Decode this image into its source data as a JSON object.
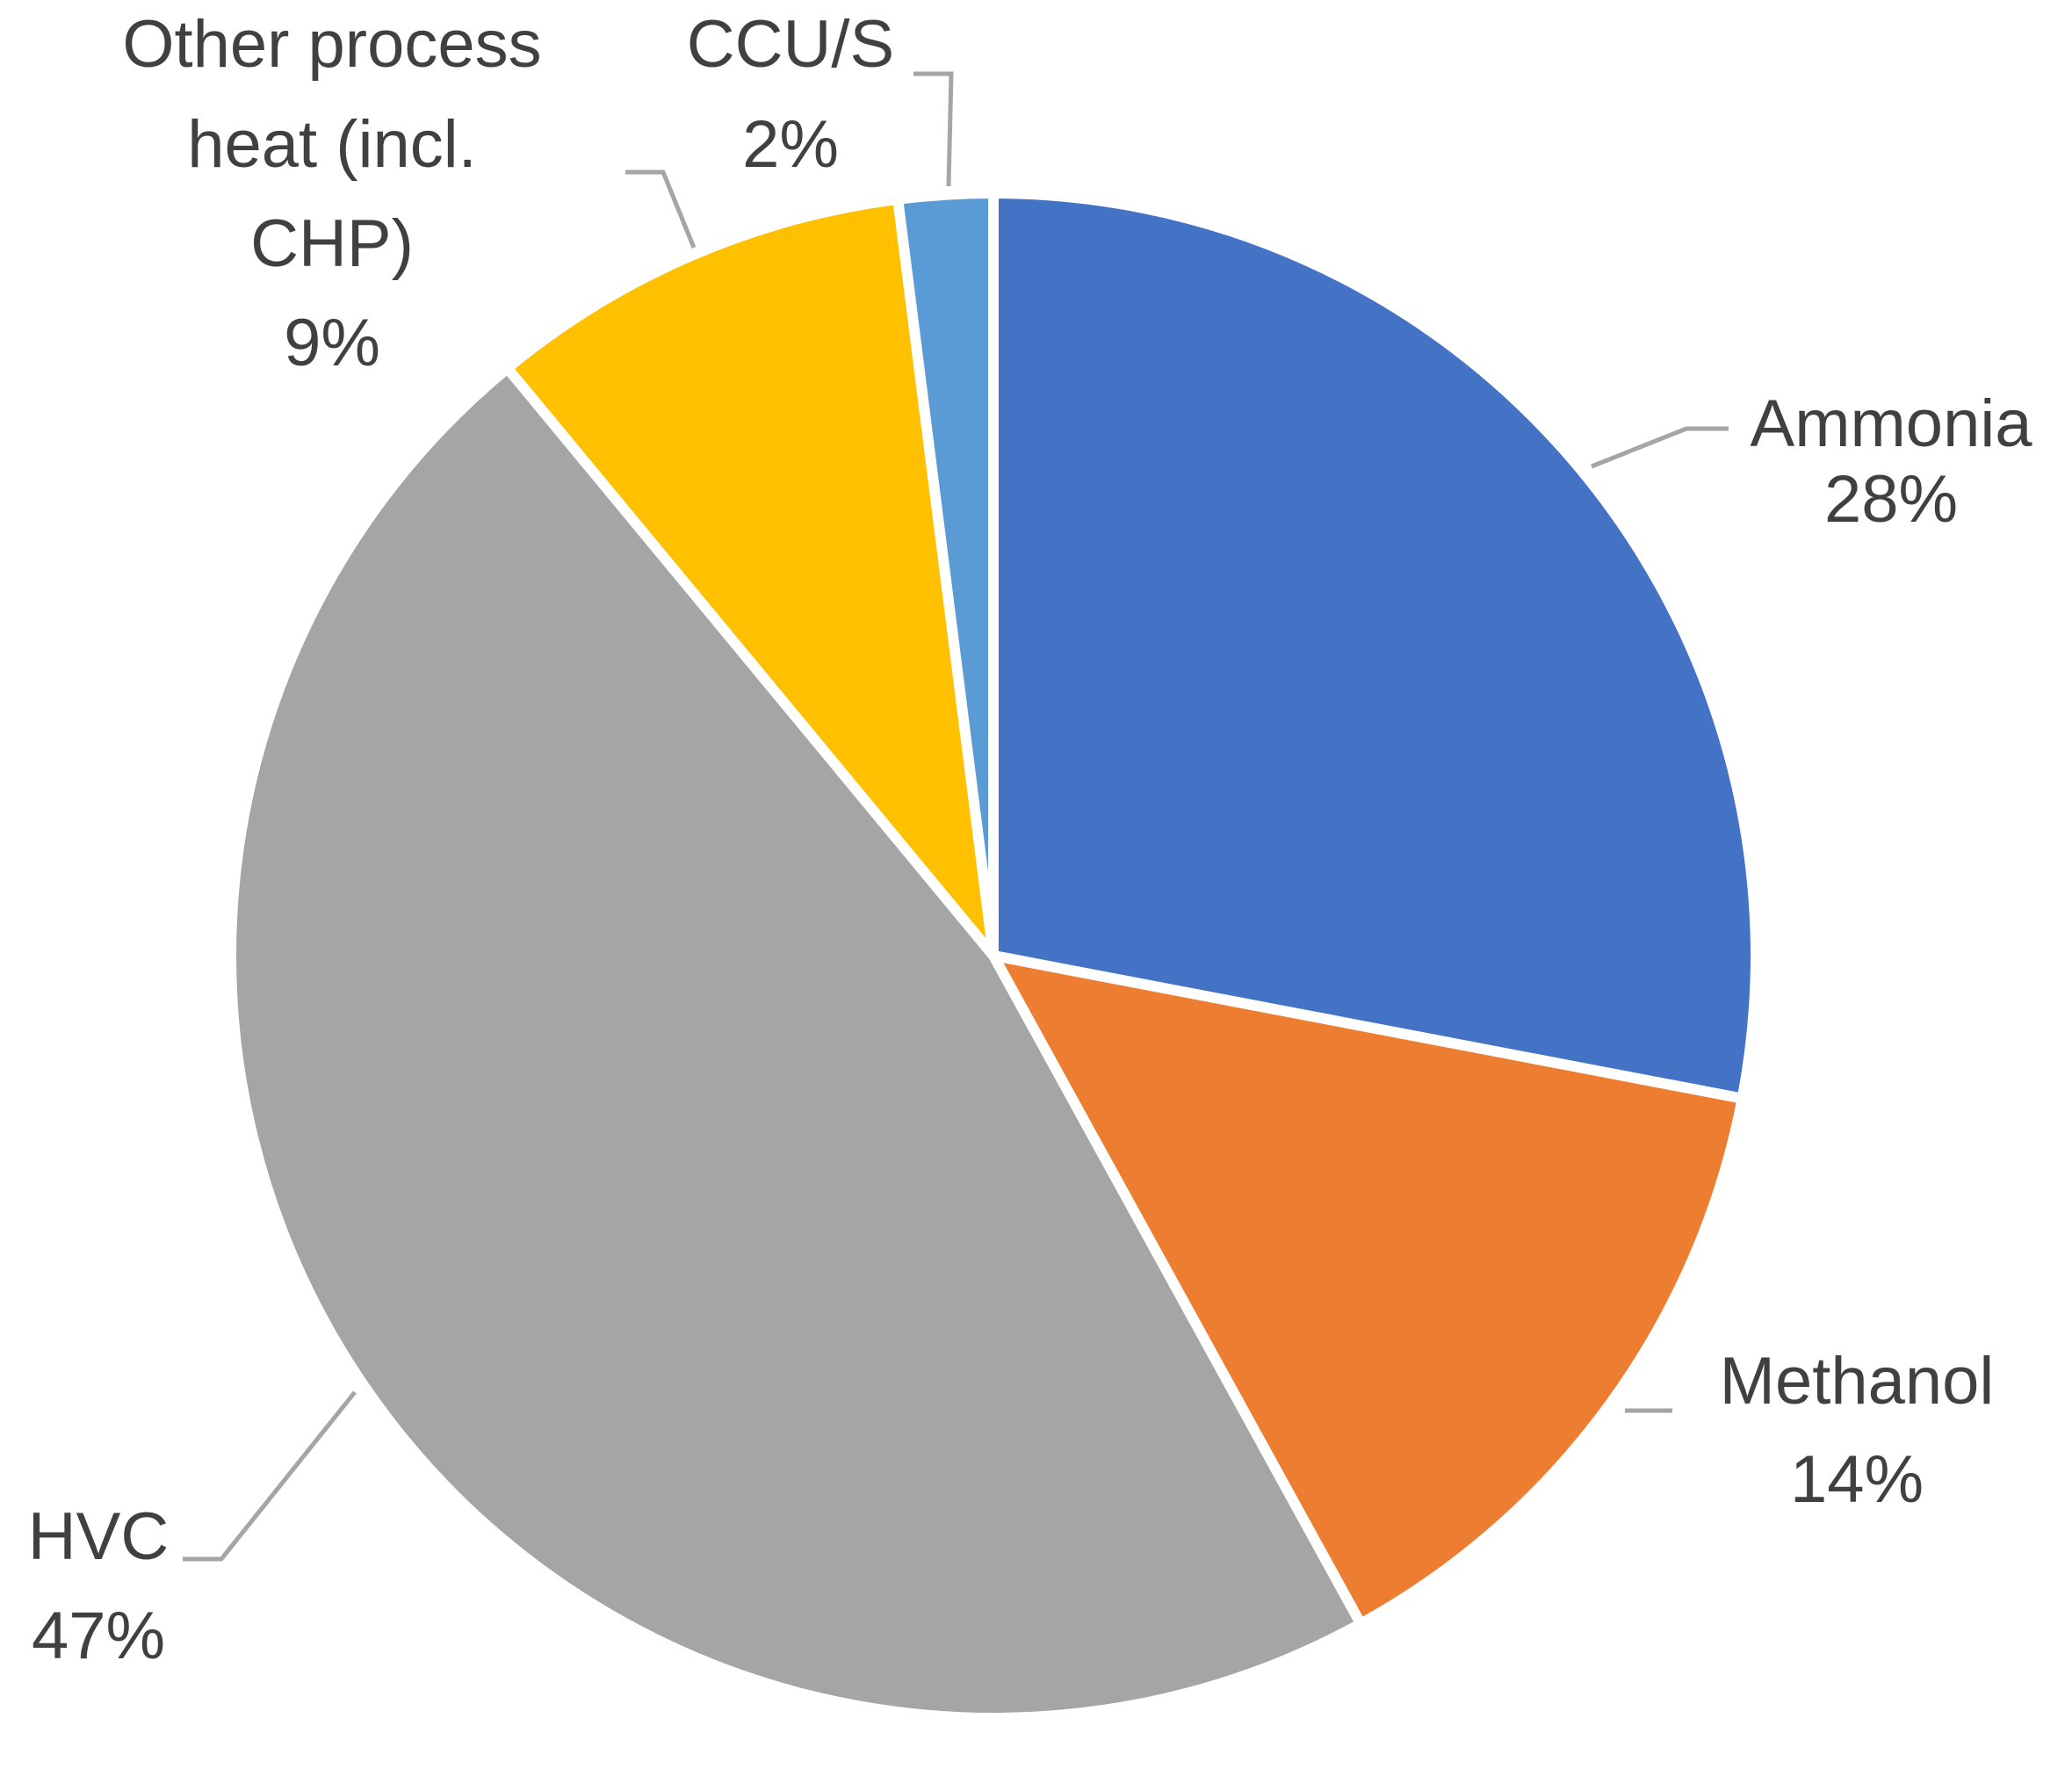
{
  "chart_data": {
    "type": "pie",
    "title": "",
    "start_angle_deg": 0,
    "direction": "clockwise",
    "slices": [
      {
        "label": "Ammonia",
        "value": 28,
        "pct_label": "28%",
        "color": "#4472C4"
      },
      {
        "label": "Methanol",
        "value": 14,
        "pct_label": "14%",
        "color": "#ED7D31"
      },
      {
        "label": "HVC",
        "value": 47,
        "pct_label": "47%",
        "color": "#A5A5A5"
      },
      {
        "label_lines": [
          "Other process",
          "heat (incl.",
          "CHP)"
        ],
        "value": 9,
        "pct_label": "9%",
        "color": "#FFC000"
      },
      {
        "label": "CCU/S",
        "value": 2,
        "pct_label": "2%",
        "color": "#5B9BD5"
      }
    ],
    "leader_line_color": "#A5A5A5",
    "separator_color": "#FFFFFF"
  }
}
